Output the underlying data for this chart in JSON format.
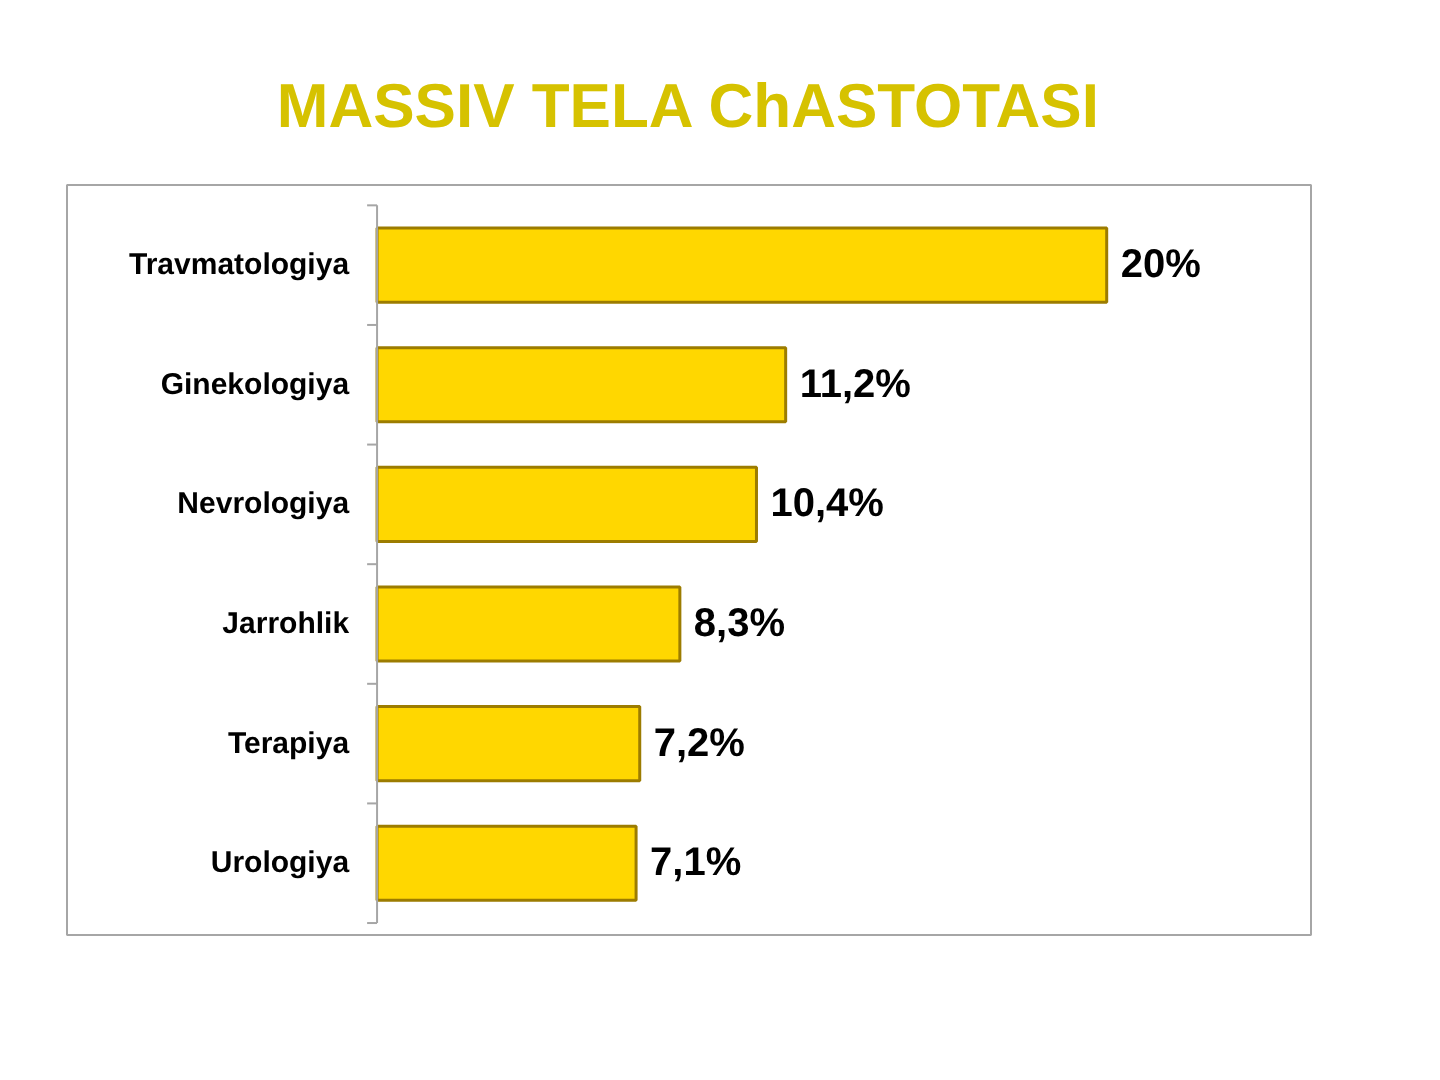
{
  "chart_data": {
    "type": "bar",
    "orientation": "horizontal",
    "title": "MASSIV TELA ChASTOTASI",
    "categories": [
      "Travmatologiya",
      "Ginekologiya",
      "Nevrologiya",
      "Jarrohlik",
      "Terapiya",
      "Urologiya"
    ],
    "values": [
      20,
      11.2,
      10.4,
      8.3,
      7.2,
      7.1
    ],
    "value_labels": [
      "20%",
      "11,2%",
      "10,4%",
      "8,3%",
      "7,2%",
      "7,1%"
    ],
    "color": "#ffd700",
    "tick_labels": "y"
  }
}
